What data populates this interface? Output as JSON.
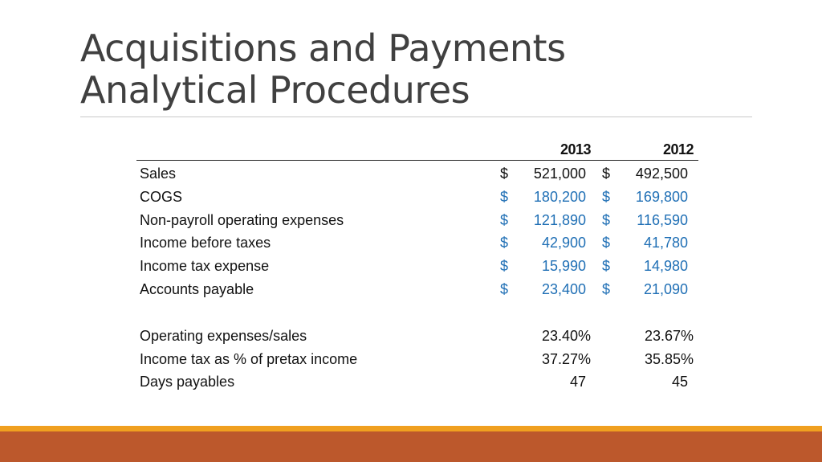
{
  "slide": {
    "title_line1": "Acquisitions and Payments",
    "title_line2": "Analytical Procedures"
  },
  "table": {
    "headers": [
      "2013",
      "2012"
    ],
    "currency_symbol": "$",
    "rows": [
      {
        "label": "Sales",
        "v2013": "521,000",
        "v2012": "492,500",
        "highlight": false
      },
      {
        "label": "COGS",
        "v2013": "180,200",
        "v2012": "169,800",
        "highlight": true
      },
      {
        "label": "Non-payroll operating expenses",
        "v2013": "121,890",
        "v2012": "116,590",
        "highlight": true
      },
      {
        "label": "Income before taxes",
        "v2013": "42,900",
        "v2012": "41,780",
        "highlight": true
      },
      {
        "label": "Income tax expense",
        "v2013": "15,990",
        "v2012": "14,980",
        "highlight": true
      },
      {
        "label": "Accounts payable",
        "v2013": "23,400",
        "v2012": "21,090",
        "highlight": true
      }
    ],
    "ratios": [
      {
        "label": "Operating expenses/sales",
        "v2013": "23.40%",
        "v2012": "23.67%"
      },
      {
        "label": "Income tax as % of pretax income",
        "v2013": "37.27%",
        "v2012": "35.85%"
      },
      {
        "label": "Days payables",
        "v2013": "47",
        "v2012": "45"
      }
    ]
  },
  "colors": {
    "highlight_text": "#1f6fb5",
    "footer_accent": "#f0a020",
    "footer_bar": "#bc582c",
    "title_text": "#404040"
  }
}
